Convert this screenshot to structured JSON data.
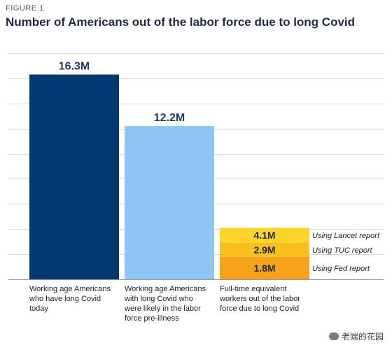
{
  "figure_label": "FIGURE 1",
  "watermark": "老端的花园",
  "chart_data": {
    "type": "bar",
    "title": "Number of Americans out of the labor force due to long Covid",
    "xlabel": "",
    "ylabel": "",
    "ylim": [
      0,
      18
    ],
    "grid": true,
    "categories": [
      [
        "Working age Americans",
        "who have long Covid",
        "today"
      ],
      [
        "Working age Americans",
        "with long Covid who",
        "were likely in the labor",
        "force pre-illness"
      ],
      [
        "Full-time equivalent",
        "workers out of the labor",
        "force due to long Covid"
      ]
    ],
    "bars": [
      {
        "value": 16.3,
        "label": "16.3M",
        "color": "#003a70"
      },
      {
        "value": 12.2,
        "label": "12.2M",
        "color": "#8fc6f6"
      },
      {
        "stacked": true,
        "segments": [
          {
            "value": 1.8,
            "label": "1.8M",
            "note": "Using Fed report",
            "color": "#f7a21b"
          },
          {
            "value": 1.1,
            "label": "2.9M",
            "note": "Using TUC report",
            "color": "#f9bf21"
          },
          {
            "value": 1.2,
            "label": "4.1M",
            "note": "Using Lancet report",
            "color": "#fdd52a"
          }
        ]
      }
    ]
  }
}
